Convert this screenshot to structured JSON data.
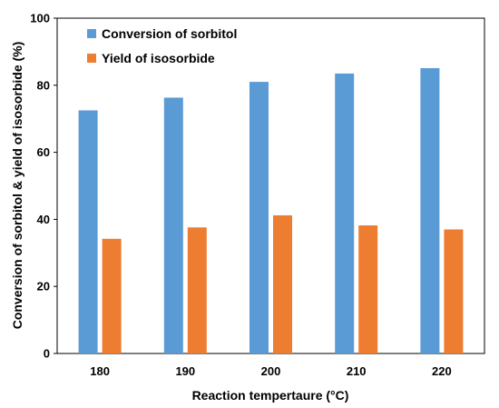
{
  "chart_data": {
    "type": "bar",
    "categories": [
      "180",
      "190",
      "200",
      "210",
      "220"
    ],
    "series": [
      {
        "name": "Conversion of sorbitol",
        "values": [
          72.5,
          76.3,
          81.0,
          83.5,
          85.1
        ],
        "color": "#5b9bd5"
      },
      {
        "name": "Yield of isosorbide",
        "values": [
          34.2,
          37.6,
          41.2,
          38.2,
          37.0
        ],
        "color": "#ed7d31"
      }
    ],
    "title": "",
    "xlabel": "Reaction tempertaure (°C)",
    "ylabel": "Conversion of sorbitol & yield of isosorbide (%)",
    "ylim": [
      0,
      100
    ],
    "yticks": [
      "0",
      "20",
      "40",
      "60",
      "80",
      "100"
    ],
    "grid": false,
    "legend": "top-left"
  }
}
